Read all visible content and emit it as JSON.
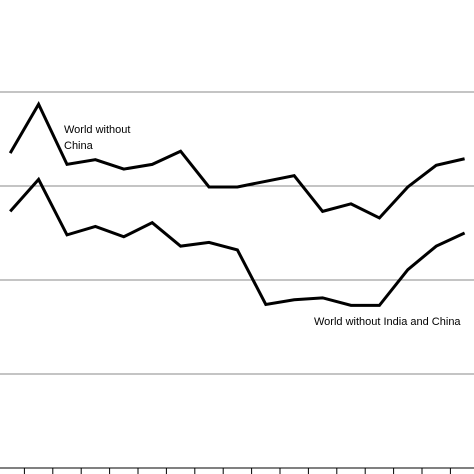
{
  "chart_data": {
    "type": "line",
    "categories": [
      null,
      null,
      null,
      null,
      null,
      null,
      null,
      null,
      null,
      null,
      null,
      null,
      null,
      null,
      null,
      null,
      null
    ],
    "series": [
      {
        "name": "World without China",
        "color": "#000000",
        "values": [
          3.35,
          3.87,
          3.23,
          3.28,
          3.18,
          3.23,
          3.37,
          2.99,
          2.99,
          3.05,
          3.11,
          2.73,
          2.81,
          2.66,
          2.99,
          3.22,
          3.29
        ]
      },
      {
        "name": "World without India and China",
        "color": "#000000",
        "values": [
          2.73,
          3.07,
          2.48,
          2.57,
          2.46,
          2.61,
          2.36,
          2.4,
          2.32,
          1.74,
          1.79,
          1.81,
          1.73,
          1.73,
          2.11,
          2.36,
          2.5
        ]
      }
    ],
    "annotations": [
      "World without China",
      "World without India and China"
    ],
    "ylim": [
      0,
      5
    ],
    "yticks": [
      1,
      2,
      3,
      4
    ],
    "grid": true
  }
}
